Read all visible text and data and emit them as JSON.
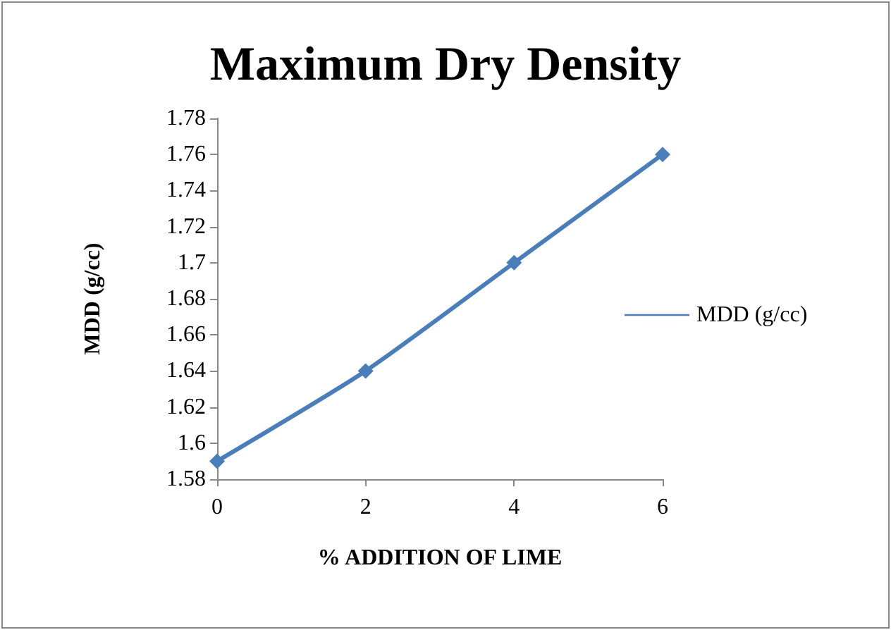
{
  "chart_data": {
    "type": "line",
    "title": "Maximum Dry Density",
    "xlabel": "% ADDITION OF LIME",
    "ylabel": "MDD (g/cc)",
    "categories": [
      "0",
      "2",
      "4",
      "6"
    ],
    "series": [
      {
        "name": "MDD (g/cc)",
        "color": "#4a7ebb",
        "values": [
          1.59,
          1.64,
          1.7,
          1.76
        ]
      }
    ],
    "ylim": [
      1.58,
      1.78
    ],
    "yticks": [
      1.58,
      1.6,
      1.62,
      1.64,
      1.66,
      1.68,
      1.7,
      1.72,
      1.74,
      1.76,
      1.78
    ],
    "grid": false,
    "legend": "right",
    "marker": "diamond",
    "line_style": "solid"
  }
}
